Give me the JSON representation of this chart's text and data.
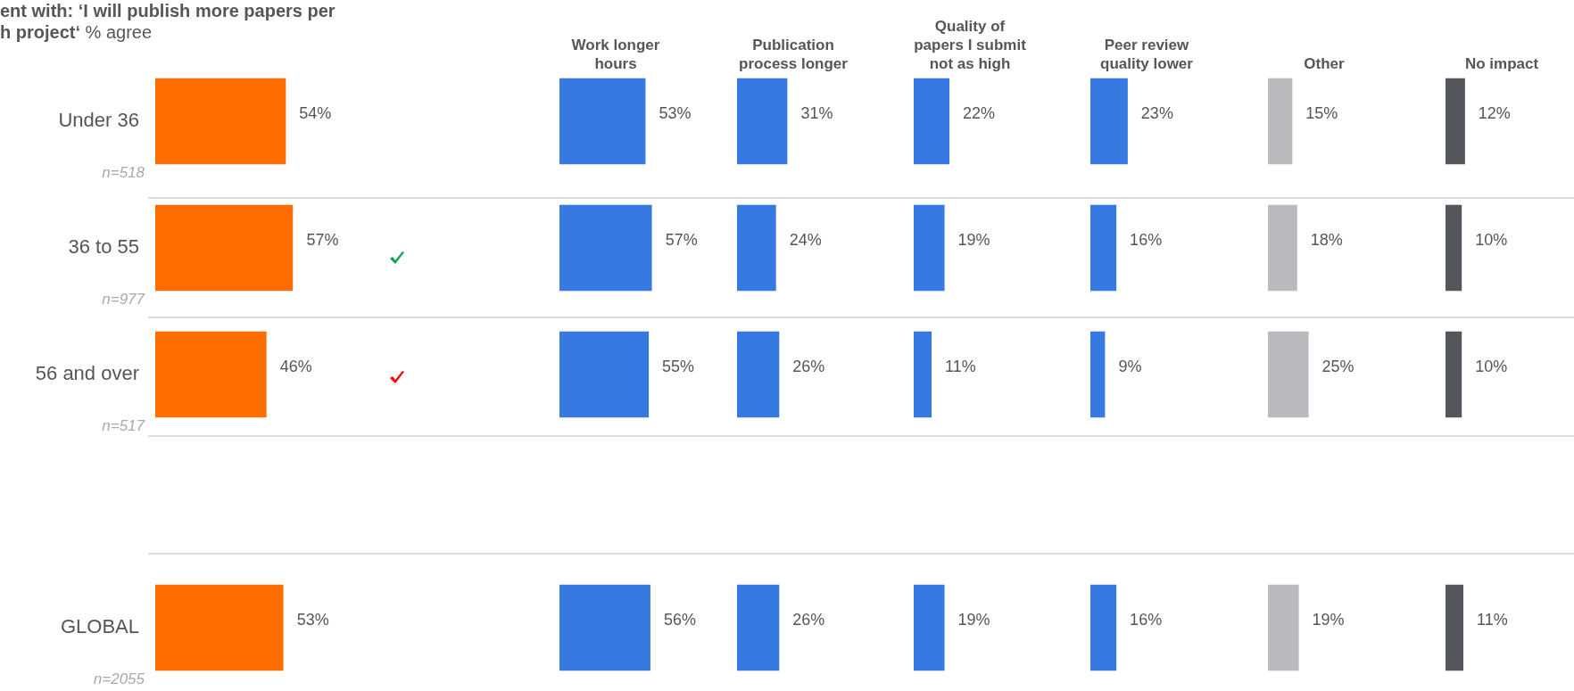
{
  "chart_data": [
    {
      "type": "bar",
      "orientation": "horizontal",
      "title": "ent with: ‘I will publish more papers per\nh project‘",
      "subtitle": "% agree",
      "categories": [
        "Under 36",
        "36 to 55",
        "56 and over",
        null,
        "GLOBAL"
      ],
      "values": [
        54,
        57,
        46,
        null,
        53
      ],
      "value_labels": [
        "54%",
        "57%",
        "46%",
        null,
        "53%"
      ],
      "color": "#ff6d00",
      "tick_labels": "y",
      "annotations": [
        "n=518",
        "n=977",
        "n=517",
        "n=2055"
      ]
    },
    {
      "type": "bar",
      "orientation": "horizontal",
      "title": "Work longer\nhours",
      "categories": [
        null,
        null,
        null,
        null,
        null
      ],
      "values": [
        53,
        57,
        55,
        null,
        56
      ],
      "value_labels": [
        "53%",
        "57%",
        "55%",
        null,
        "56%"
      ],
      "color": "#3679e0"
    },
    {
      "type": "bar",
      "orientation": "horizontal",
      "title": "Publication\nprocess longer",
      "categories": [
        null,
        null,
        null,
        null,
        null
      ],
      "values": [
        31,
        24,
        26,
        null,
        26
      ],
      "value_labels": [
        "31%",
        "24%",
        "26%",
        null,
        "26%"
      ],
      "color": "#3679e0"
    },
    {
      "type": "bar",
      "orientation": "horizontal",
      "title": "Quality of\npapers I submit\nnot as high",
      "categories": [
        null,
        null,
        null,
        null,
        null
      ],
      "values": [
        22,
        19,
        11,
        null,
        19
      ],
      "value_labels": [
        "22%",
        "19%",
        "11%",
        null,
        "19%"
      ],
      "color": "#3679e0"
    },
    {
      "type": "bar",
      "orientation": "horizontal",
      "title": "Peer review\nquality lower",
      "categories": [
        null,
        null,
        null,
        null,
        null
      ],
      "values": [
        23,
        16,
        9,
        null,
        16
      ],
      "value_labels": [
        "23%",
        "16%",
        "9%",
        null,
        "16%"
      ],
      "color": "#3679e0"
    },
    {
      "type": "bar",
      "orientation": "horizontal",
      "title": "Other",
      "categories": [
        null,
        null,
        null,
        null,
        null
      ],
      "values": [
        15,
        18,
        25,
        null,
        19
      ],
      "value_labels": [
        "15%",
        "18%",
        "25%",
        null,
        "19%"
      ],
      "color": "#b8babd"
    },
    {
      "type": "bar",
      "orientation": "horizontal",
      "title": "No impact",
      "categories": [
        null,
        null,
        null,
        null,
        null
      ],
      "values": [
        12,
        10,
        10,
        null,
        11
      ],
      "value_labels": [
        "12%",
        "10%",
        "10%",
        null,
        "11%"
      ],
      "color": "#53565a"
    }
  ]
}
